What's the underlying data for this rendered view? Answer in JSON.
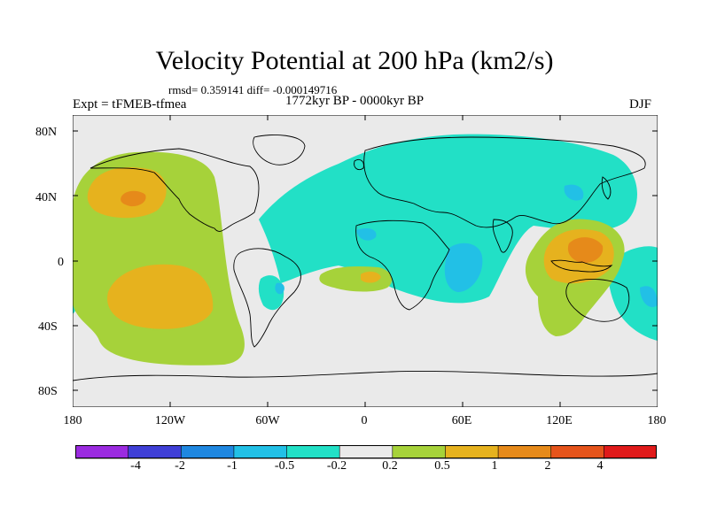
{
  "title": "Velocity Potential at 200 hPa (km2/s)",
  "stats": "rmsd= 0.359141 diff= -0.000149716",
  "experiment": "Expt = tFMEB-tfmea",
  "period": "1772kyr BP - 0000kyr BP",
  "season": "DJF",
  "map": {
    "lat_ticks": [
      "80N",
      "40N",
      "0",
      "40S",
      "80S"
    ],
    "lon_ticks": [
      "180",
      "120W",
      "60W",
      "0",
      "60E",
      "120E",
      "180"
    ]
  },
  "colorbar": {
    "labels": [
      "-4",
      "-2",
      "-1",
      "-0.5",
      "-0.2",
      "0.2",
      "0.5",
      "1",
      "2",
      "4"
    ],
    "colors": [
      "#9b2be0",
      "#3f3fd6",
      "#1f87e0",
      "#22c0e6",
      "#22e0c6",
      "#eaeaea",
      "#a6d23a",
      "#e6b21e",
      "#e68a1a",
      "#e5541b",
      "#e01a1a"
    ]
  },
  "colors": {
    "land_outline": "#000000",
    "background": "#eaeaea"
  }
}
